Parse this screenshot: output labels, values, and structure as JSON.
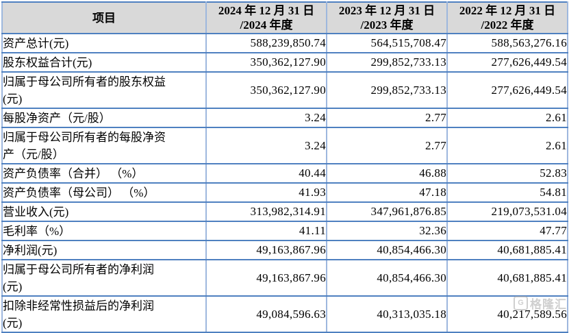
{
  "table": {
    "header": {
      "item_col": "项目",
      "col_2024": "2024 年 12 月 31 日\n/2024 年度",
      "col_2023": "2023 年 12 月 31 日\n/2023 年度",
      "col_2022": "2022 年 12 月 31 日\n/2022 年度"
    },
    "rows": [
      {
        "label": "资产总计(元)",
        "v2024": "588,239,850.74",
        "v2023": "564,515,708.47",
        "v2022": "588,563,276.16"
      },
      {
        "label": "股东权益合计(元)",
        "v2024": "350,362,127.90",
        "v2023": "299,852,733.13",
        "v2022": "277,626,449.54"
      },
      {
        "label": "归属于母公司所有者的股东权益\n(元)",
        "v2024": "350,362,127.90",
        "v2023": "299,852,733.13",
        "v2022": "277,626,449.54"
      },
      {
        "label": "每股净资产（元/股）",
        "v2024": "3.24",
        "v2023": "2.77",
        "v2022": "2.61"
      },
      {
        "label": "归属于母公司所有者的每股净资\n产（元/股）",
        "v2024": "3.24",
        "v2023": "2.77",
        "v2022": "2.61"
      },
      {
        "label": "资产负债率（合并） （%）",
        "v2024": "40.44",
        "v2023": "46.88",
        "v2022": "52.83"
      },
      {
        "label": "资产负债率（母公司） （%）",
        "v2024": "41.93",
        "v2023": "47.18",
        "v2022": "54.81"
      },
      {
        "label": "营业收入(元)",
        "v2024": "313,982,314.91",
        "v2023": "347,961,876.85",
        "v2022": "219,073,531.04"
      },
      {
        "label": "毛利率（%）",
        "v2024": "41.11",
        "v2023": "32.36",
        "v2022": "47.77"
      },
      {
        "label": "净利润(元)",
        "v2024": "49,163,867.96",
        "v2023": "40,854,466.30",
        "v2022": "40,681,885.41"
      },
      {
        "label": "归属于母公司所有者的净利润\n(元)",
        "v2024": "49,163,867.96",
        "v2023": "40,854,466.30",
        "v2022": "40,681,885.41"
      },
      {
        "label": "扣除非经常性损益后的净利润\n(元)",
        "v2024": "49,084,596.63",
        "v2023": "40,313,035.18",
        "v2022": "40,217,589.56"
      }
    ]
  },
  "watermark": {
    "icon_letter": "G",
    "text": "格隆汇"
  },
  "colors": {
    "header_bg": "#d9d9d9",
    "border_horizontal": "#4e80c0",
    "border_vertical": "#9db7de",
    "text": "#000000",
    "watermark": "#a9a9a9"
  }
}
